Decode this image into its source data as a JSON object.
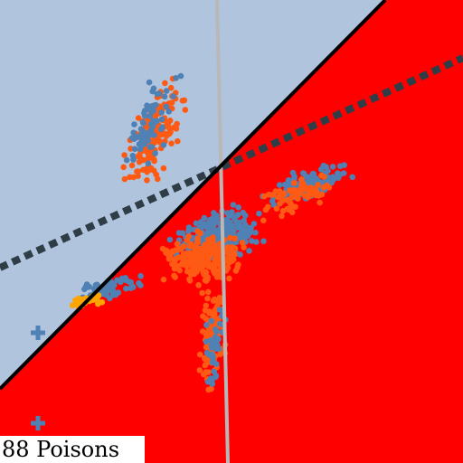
{
  "poison_label": "88 Poisons",
  "colors": {
    "region_a": "#b0c4de",
    "region_b": "#ff0000",
    "blue_points": "#4f81b5",
    "orange_points": "#ff5a14",
    "yellow_points": "#ffa500",
    "decision_line": "#000000",
    "dotted_line": "#2f3e46",
    "vertical_line": "#b8b8b8",
    "marker": "#4f81b5"
  },
  "icons": {
    "marker": "plus-marker"
  }
}
